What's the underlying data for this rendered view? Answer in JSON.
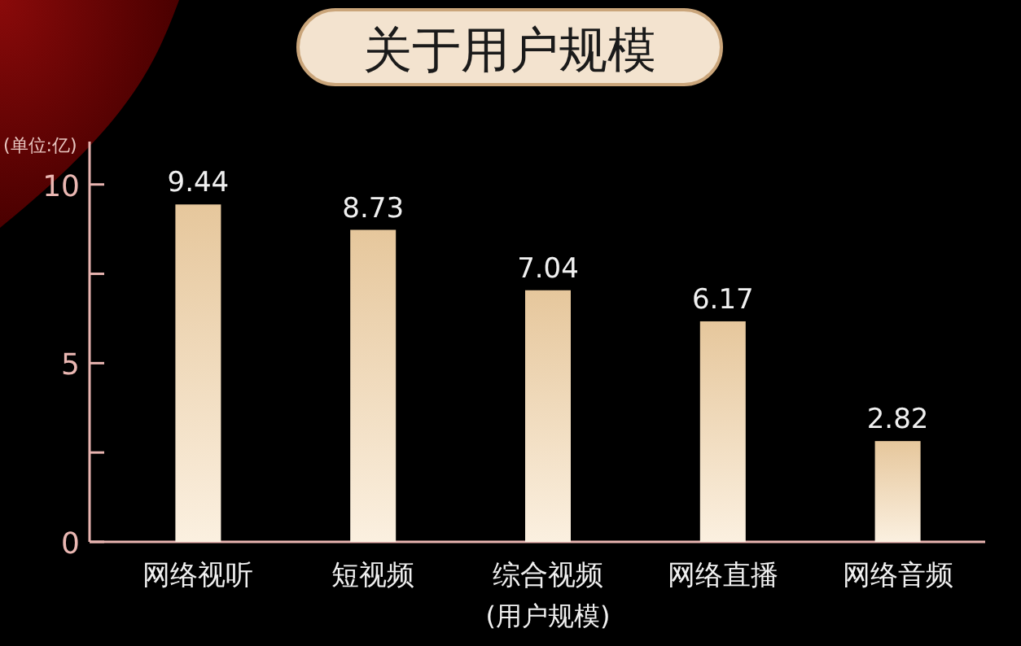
{
  "chart_data": {
    "type": "bar",
    "title": "关于用户规模",
    "ylabel": "(单位:亿)",
    "xlabel": "(用户规模)",
    "categories": [
      "网络视听",
      "短视频",
      "综合视频",
      "网络直播",
      "网络音频"
    ],
    "values": [
      9.44,
      8.73,
      7.04,
      6.17,
      2.82
    ],
    "color": "#e6c79c",
    "ylim": [
      0,
      11.2
    ],
    "yticks": [
      0,
      {
        "value": 2.5,
        "label": null
      },
      5,
      {
        "value": 7.5,
        "label": null
      },
      10
    ],
    "data_labels": true
  }
}
